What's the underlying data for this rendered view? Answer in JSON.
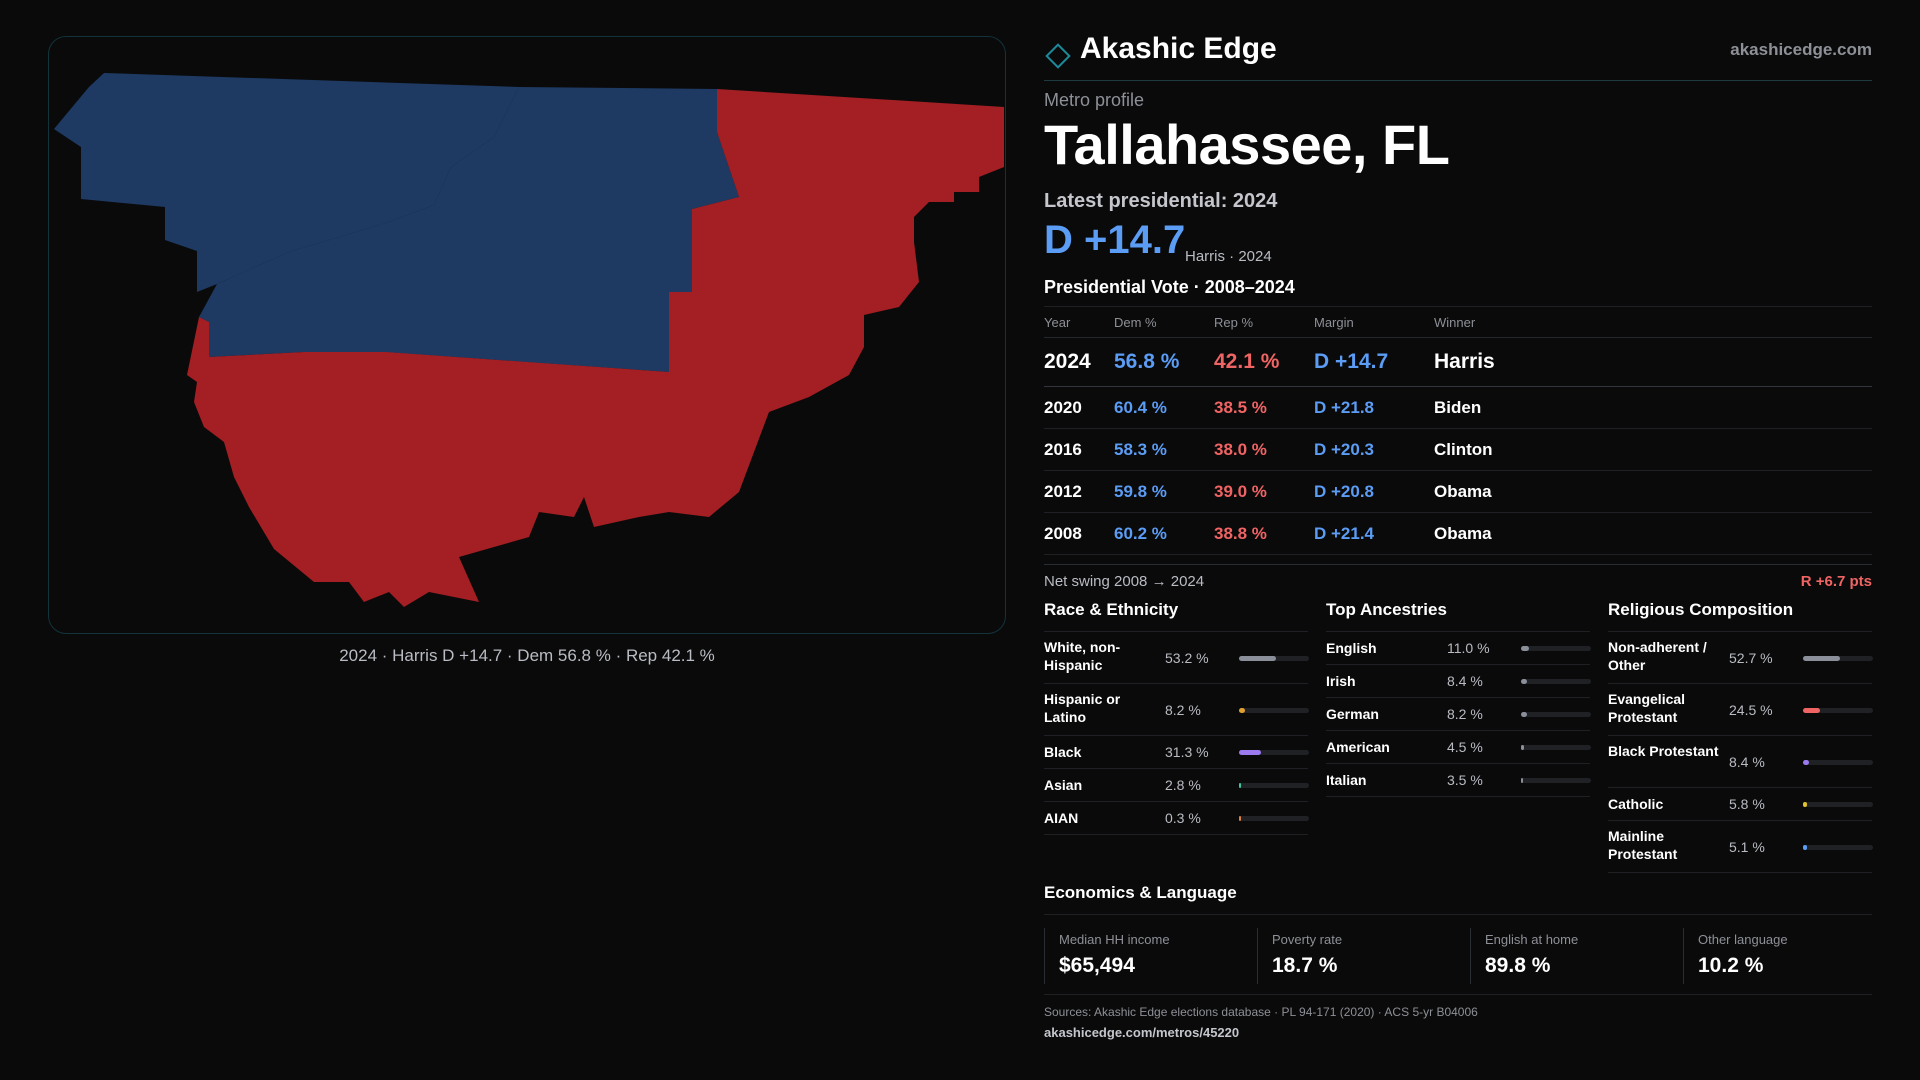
{
  "brand": {
    "name": "Akashic Edge",
    "url": "akashicedge.com"
  },
  "profile": {
    "eyebrow": "Metro profile",
    "city": "Tallahassee, FL",
    "latest_label": "Latest presidential: 2024",
    "margin": "D +14.7",
    "margin_sub": "Harris · 2024"
  },
  "map": {
    "caption": "2024 · Harris D +14.7 · Dem 56.8 % · Rep 42.1 %",
    "colors": {
      "dem": "#1e3a63",
      "rep": "#a31f23"
    }
  },
  "vote": {
    "title": "Presidential Vote · 2008–2024",
    "headers": {
      "year": "Year",
      "dem": "Dem %",
      "rep": "Rep %",
      "margin": "Margin",
      "winner": "Winner"
    },
    "rows": [
      {
        "year": "2024",
        "dem": "56.8 %",
        "rep": "42.1 %",
        "margin": "D +14.7",
        "winner": "Harris"
      },
      {
        "year": "2020",
        "dem": "60.4 %",
        "rep": "38.5 %",
        "margin": "D +21.8",
        "winner": "Biden"
      },
      {
        "year": "2016",
        "dem": "58.3 %",
        "rep": "38.0 %",
        "margin": "D +20.3",
        "winner": "Clinton"
      },
      {
        "year": "2012",
        "dem": "59.8 %",
        "rep": "39.0 %",
        "margin": "D +20.8",
        "winner": "Obama"
      },
      {
        "year": "2008",
        "dem": "60.2 %",
        "rep": "38.8 %",
        "margin": "D +21.4",
        "winner": "Obama"
      }
    ],
    "swing_label": "Net swing 2008 → 2024",
    "swing_value": "R +6.7 pts"
  },
  "race": {
    "title": "Race & Ethnicity",
    "rows": [
      {
        "label": "White, non-Hispanic",
        "value": "53.2 %",
        "pct": 53.2,
        "color": "#8a8f99"
      },
      {
        "label": "Hispanic or Latino",
        "value": "8.2 %",
        "pct": 8.2,
        "color": "#e0a030"
      },
      {
        "label": "Black",
        "value": "31.3 %",
        "pct": 31.3,
        "color": "#9b7af0"
      },
      {
        "label": "Asian",
        "value": "2.8 %",
        "pct": 2.8,
        "color": "#3cc8a0"
      },
      {
        "label": "AIAN",
        "value": "0.3 %",
        "pct": 0.3,
        "color": "#e08040"
      }
    ]
  },
  "ancestry": {
    "title": "Top Ancestries",
    "rows": [
      {
        "label": "English",
        "value": "11.0 %",
        "pct": 11.0,
        "color": "#8a8f99"
      },
      {
        "label": "Irish",
        "value": "8.4 %",
        "pct": 8.4,
        "color": "#8a8f99"
      },
      {
        "label": "German",
        "value": "8.2 %",
        "pct": 8.2,
        "color": "#8a8f99"
      },
      {
        "label": "American",
        "value": "4.5 %",
        "pct": 4.5,
        "color": "#8a8f99"
      },
      {
        "label": "Italian",
        "value": "3.5 %",
        "pct": 3.5,
        "color": "#8a8f99"
      }
    ]
  },
  "religion": {
    "title": "Religious Composition",
    "rows": [
      {
        "label": "Non-adherent / Other",
        "value": "52.7 %",
        "pct": 52.7,
        "color": "#8a8f99"
      },
      {
        "label": "Evangelical Protestant",
        "value": "24.5 %",
        "pct": 24.5,
        "color": "#f06464"
      },
      {
        "label": "Black Protestant",
        "value": "8.4 %",
        "pct": 8.4,
        "color": "#9b7af0"
      },
      {
        "label": "Catholic",
        "value": "5.8 %",
        "pct": 5.8,
        "color": "#e0c030"
      },
      {
        "label": "Mainline Protestant",
        "value": "5.1 %",
        "pct": 5.1,
        "color": "#5b9cf5"
      }
    ]
  },
  "econ": {
    "title": "Economics & Language",
    "cards": [
      {
        "label": "Median HH income",
        "value": "$65,494"
      },
      {
        "label": "Poverty rate",
        "value": "18.7 %"
      },
      {
        "label": "English at home",
        "value": "89.8 %"
      },
      {
        "label": "Other language",
        "value": "10.2 %"
      }
    ]
  },
  "footer": {
    "sources": "Sources: Akashic Edge elections database · PL 94-171 (2020) · ACS 5-yr B04006",
    "url": "akashicedge.com/metros/45220"
  }
}
